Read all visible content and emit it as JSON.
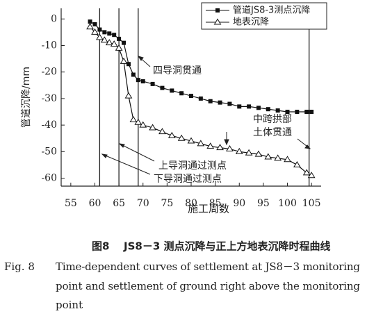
{
  "chart_data": {
    "type": "line",
    "x_label": "施工周数",
    "y_label": "管道沉降/mm",
    "x": [
      59,
      60,
      61,
      62,
      63,
      64,
      65,
      66,
      67,
      68,
      69,
      70,
      72,
      74,
      76,
      78,
      80,
      82,
      84,
      86,
      88,
      90,
      92,
      94,
      96,
      98,
      100,
      102,
      104,
      105
    ],
    "series": [
      {
        "name": "管道JS8-3测点沉降",
        "color": "#111111",
        "marker": "square",
        "values": [
          -1,
          -2,
          -4,
          -5,
          -5.5,
          -6,
          -7.5,
          -9,
          -17,
          -21,
          -23,
          -23.5,
          -24.5,
          -26,
          -27,
          -28,
          -29,
          -30,
          -31,
          -31.5,
          -32,
          -33,
          -33,
          -33.5,
          -34,
          -34.5,
          -35,
          -35,
          -35,
          -35
        ]
      },
      {
        "name": "地表沉降",
        "color": "#111111",
        "marker": "triangle",
        "values": [
          -3,
          -5,
          -7,
          -8,
          -9,
          -9.5,
          -11,
          -16,
          -29,
          -38,
          -39,
          -40,
          -41,
          -42.5,
          -44,
          -45,
          -46,
          -47,
          -48,
          -48.5,
          -49,
          -50,
          -50.5,
          -51,
          -52,
          -52.5,
          -53,
          -55,
          -58,
          -59
        ]
      }
    ],
    "xlim": [
      53,
      107
    ],
    "ylim": [
      -63,
      4
    ],
    "xticks": [
      55,
      60,
      65,
      70,
      75,
      80,
      85,
      90,
      95,
      100,
      105
    ],
    "yticks": [
      0,
      -10,
      -20,
      -30,
      -40,
      -50,
      -60
    ],
    "vlines": [
      61,
      65,
      69,
      104.5
    ],
    "annotations": [
      "四导洞贯通",
      "中跨拱部",
      "土体贯通",
      "上导洞通过测点",
      "下导洞通过测点"
    ]
  },
  "caption": {
    "cn_label": "图8",
    "cn_text": "JS8－3 测点沉降与正上方地表沉降时程曲线",
    "en_label": "Fig. 8",
    "en_lines": [
      "Time-dependent curves of settlement at JS8－3 monitoring",
      "point and settlement of ground right above the monitoring",
      "point"
    ]
  }
}
